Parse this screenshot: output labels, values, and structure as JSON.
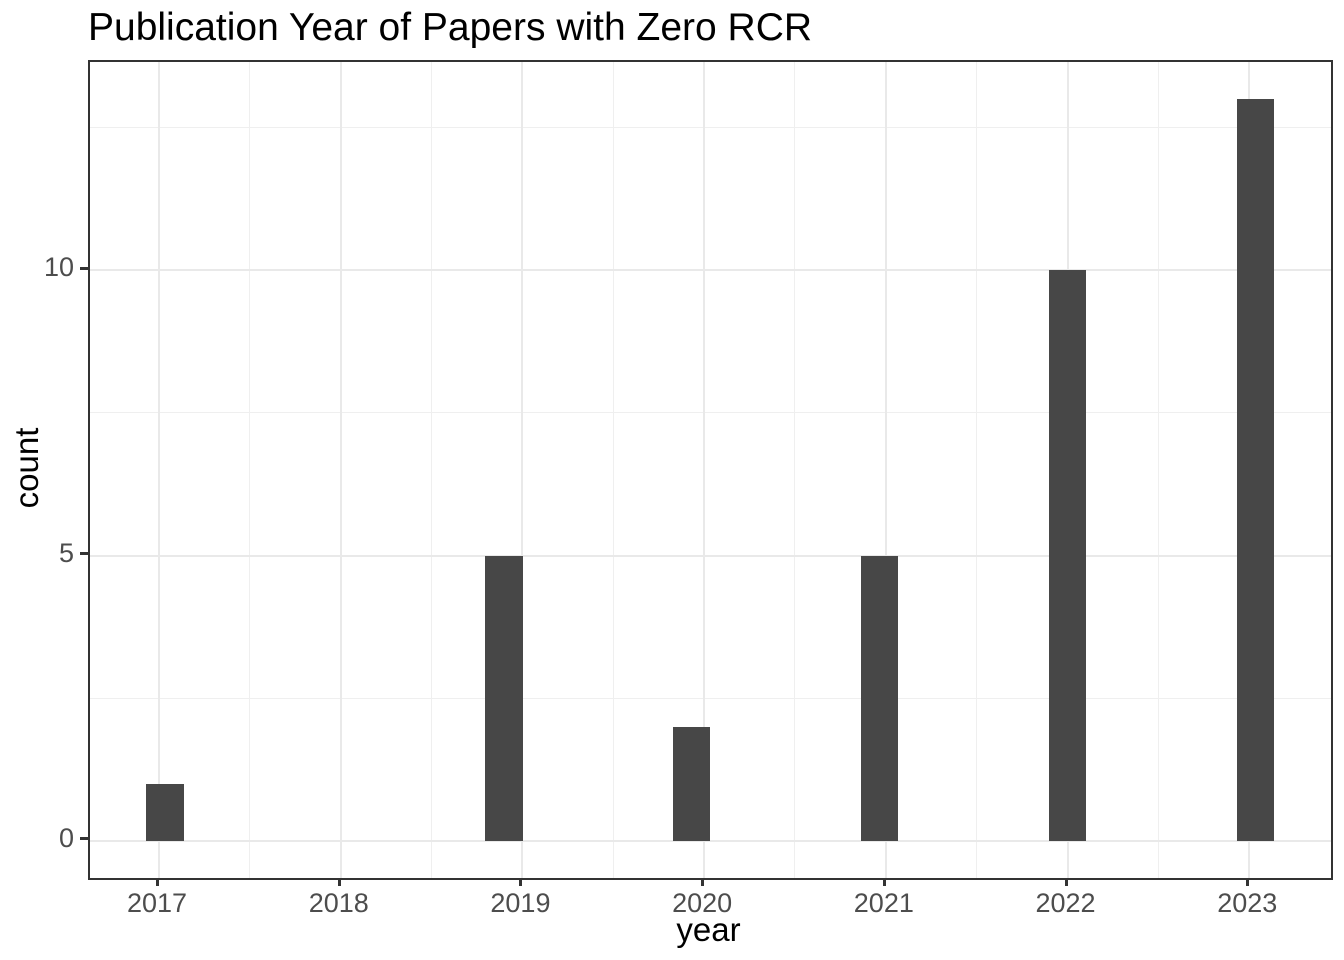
{
  "chart_data": {
    "type": "bar",
    "subtype": "histogram",
    "title": "Publication Year of Papers with Zero RCR",
    "xlabel": "year",
    "ylabel": "count",
    "categories": [
      2017,
      2018,
      2019,
      2020,
      2021,
      2022,
      2023
    ],
    "values": [
      1,
      0,
      5,
      2,
      5,
      10,
      13
    ],
    "bars": [
      {
        "year": 2017,
        "count": 1,
        "bin_center": 2017.034
      },
      {
        "year": 2019,
        "count": 5,
        "bin_center": 2018.897
      },
      {
        "year": 2020,
        "count": 2,
        "bin_center": 2019.931
      },
      {
        "year": 2021,
        "count": 5,
        "bin_center": 2020.966
      },
      {
        "year": 2022,
        "count": 10,
        "bin_center": 2022.0
      },
      {
        "year": 2023,
        "count": 13,
        "bin_center": 2023.034
      }
    ],
    "bar_width_years": 0.2069,
    "x_ticks": [
      2017,
      2018,
      2019,
      2020,
      2021,
      2022,
      2023
    ],
    "y_ticks": [
      0,
      5,
      10
    ],
    "x_minor_ticks": [
      2017.5,
      2018.5,
      2019.5,
      2020.5,
      2021.5,
      2022.5
    ],
    "y_minor_ticks": [
      2.5,
      7.5,
      12.5
    ],
    "xlim": [
      2016.62,
      2023.45
    ],
    "ylim": [
      -0.65,
      13.65
    ],
    "grid": true,
    "legend_position": "none",
    "colors": {
      "bar_fill": "#474747",
      "grid_major": "#e9e9e9",
      "grid_minor": "#efefef",
      "panel_border": "#333333",
      "tick_mark": "#333333",
      "tick_label": "#4d4d4d",
      "axis_title": "#000000",
      "title": "#000000",
      "background": "#ffffff"
    }
  }
}
